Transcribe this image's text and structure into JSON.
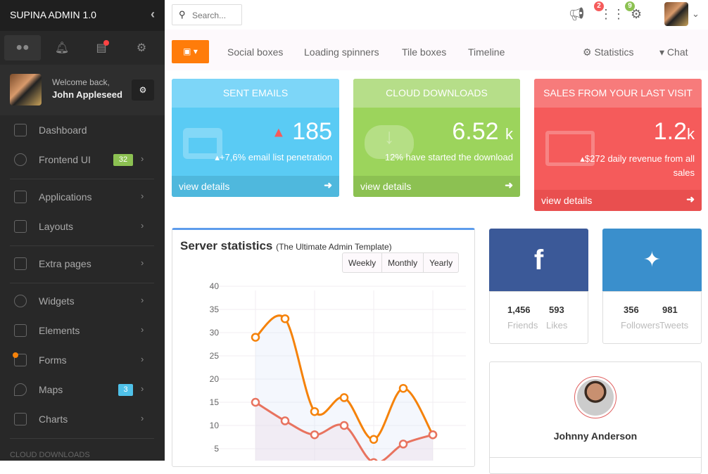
{
  "app": {
    "title": "SUPINA ADMIN 1.0"
  },
  "sidebar": {
    "tabs": [
      "users-icon",
      "bell-icon",
      "chart-icon",
      "gears-icon"
    ],
    "user": {
      "welcome": "Welcome back,",
      "name": "John Appleseed"
    },
    "items": [
      {
        "label": "Dashboard",
        "icon": "dashboard-icon"
      },
      {
        "label": "Frontend UI",
        "icon": "cloud-icon",
        "badge": "32",
        "badge_color": "#8cc152"
      },
      {
        "label": "Applications",
        "icon": "store-icon"
      },
      {
        "label": "Layouts",
        "icon": "monitor-icon"
      },
      {
        "label": "Extra pages",
        "icon": "sliders-icon"
      },
      {
        "label": "Widgets",
        "icon": "gear-icon"
      },
      {
        "label": "Elements",
        "icon": "flask-icon"
      },
      {
        "label": "Forms",
        "icon": "form-icon"
      },
      {
        "label": "Maps",
        "icon": "map-pin-icon",
        "badge": "3",
        "badge_color": "#4fc1e9"
      },
      {
        "label": "Charts",
        "icon": "calendar-icon"
      }
    ],
    "section_label": "CLOUD DOWNLOADS"
  },
  "topbar": {
    "search_placeholder": "Search...",
    "notif_badge_1": "2",
    "notif_badge_2": "9"
  },
  "subnav": {
    "links": [
      "Social boxes",
      "Loading spinners",
      "Tile boxes",
      "Timeline"
    ],
    "right": [
      "Statistics",
      "Chat"
    ]
  },
  "tiles": [
    {
      "title": "SENT EMAILS",
      "value": "185",
      "sub": "+7,6% email list penetration",
      "footer": "view details",
      "color": "#5acbf4"
    },
    {
      "title": "CLOUD DOWNLOADS",
      "value": "6.52",
      "unit": "k",
      "sub": "12% have started the download",
      "footer": "view details",
      "color": "#9cd45c"
    },
    {
      "title": "SALES FROM YOUR LAST VISIT",
      "value": "1.2",
      "unit": "k",
      "sub": "$272 daily revenue from all sales",
      "footer": "view details",
      "color": "#f55b5b"
    }
  ],
  "server_stats": {
    "title": "Server statistics",
    "subtitle": "(The Ultimate Admin Template)",
    "periods": [
      "Weekly",
      "Monthly",
      "Yearly"
    ]
  },
  "chart_data": {
    "type": "area",
    "yticks": [
      5,
      10,
      15,
      20,
      25,
      30,
      35,
      40
    ],
    "ylim": [
      0,
      40
    ],
    "grid": true,
    "series": [
      {
        "values": [
          29,
          33,
          13,
          16,
          7,
          18,
          8
        ],
        "color": "#f5820a"
      },
      {
        "values": [
          15,
          11,
          8,
          10,
          2,
          6,
          8
        ],
        "color": "#e8735f"
      }
    ]
  },
  "social": {
    "facebook": {
      "stats": [
        {
          "value": "1,456",
          "label": "Friends"
        },
        {
          "value": "593",
          "label": "Likes"
        }
      ]
    },
    "twitter": {
      "stats": [
        {
          "value": "356",
          "label": "Followers"
        },
        {
          "value": "981",
          "label": "Tweets"
        }
      ]
    }
  },
  "profile": {
    "name": "Johnny Anderson"
  }
}
